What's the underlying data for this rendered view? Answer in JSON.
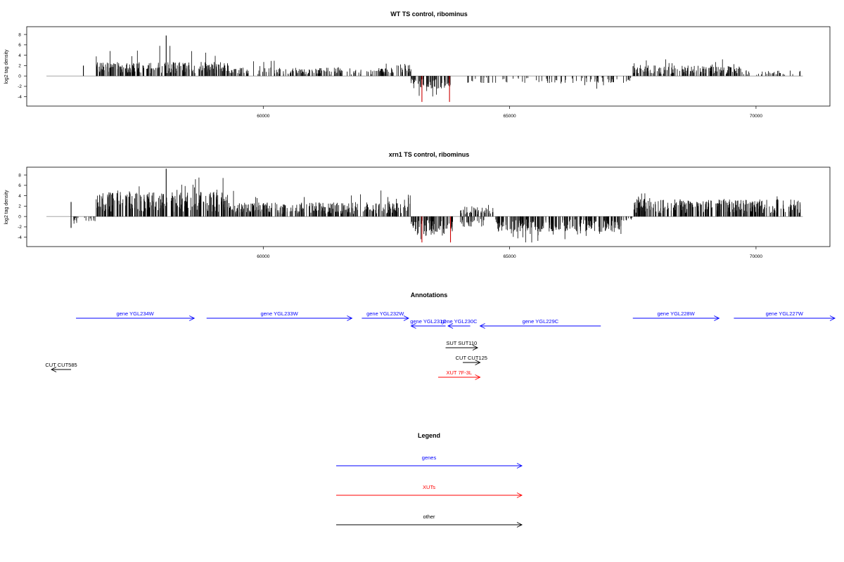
{
  "colors": {
    "gene": "#0000ff",
    "xut": "#ff0000",
    "other": "#000000",
    "bar": "#000000",
    "highlight": "#cc0000",
    "baseline": "#999999"
  },
  "chart_data": [
    {
      "type": "bar",
      "title": "WT TS control, ribominus",
      "ylabel": "log2 tag density",
      "xlim": [
        55200,
        71500
      ],
      "ylim": [
        -5.8,
        9.5
      ],
      "yticks": [
        -4,
        -2,
        0,
        2,
        4,
        6,
        8
      ],
      "xticks": [
        60000,
        65000,
        70000
      ],
      "grid": false,
      "plus_strand": [
        {
          "from": 56600,
          "to": 59300,
          "mean": 2.0,
          "max": 5.8,
          "density": 0.95
        },
        {
          "from": 59300,
          "to": 62700,
          "mean": 1.2,
          "max": 3.0,
          "density": 0.55
        },
        {
          "from": 62700,
          "to": 63000,
          "mean": 2.0,
          "max": 3.8,
          "density": 0.6
        },
        {
          "from": 67500,
          "to": 69700,
          "mean": 1.5,
          "max": 3.2,
          "density": 0.75
        },
        {
          "from": 69700,
          "to": 70900,
          "mean": 0.8,
          "max": 2.5,
          "density": 0.3
        }
      ],
      "minus_strand": [
        {
          "from": 63000,
          "to": 63800,
          "mean": -1.8,
          "min": -4.5,
          "density": 0.85
        },
        {
          "from": 64000,
          "to": 67500,
          "mean": -1.0,
          "min": -2.5,
          "density": 0.25
        }
      ],
      "peaks": [
        {
          "x": 58030,
          "y": 7.8
        },
        {
          "x": 56350,
          "y": 2.0
        },
        {
          "x": 63220,
          "y": -5.0,
          "highlight": true
        },
        {
          "x": 63780,
          "y": -5.0,
          "highlight": true
        }
      ]
    },
    {
      "type": "bar",
      "title": "xrn1 TS control, ribominus",
      "ylabel": "log2 tag density",
      "xlim": [
        55200,
        71500
      ],
      "ylim": [
        -5.8,
        9.5
      ],
      "yticks": [
        -4,
        -2,
        0,
        2,
        4,
        6,
        8
      ],
      "xticks": [
        60000,
        65000,
        70000
      ],
      "grid": false,
      "plus_strand": [
        {
          "from": 56600,
          "to": 59300,
          "mean": 3.5,
          "max": 7.5,
          "density": 1.0
        },
        {
          "from": 59300,
          "to": 62800,
          "mean": 2.0,
          "max": 5.0,
          "density": 0.9
        },
        {
          "from": 62800,
          "to": 63000,
          "mean": 2.5,
          "max": 5.0,
          "density": 0.6
        },
        {
          "from": 64000,
          "to": 64700,
          "mean": 1.5,
          "max": 3.0,
          "density": 0.6
        },
        {
          "from": 67500,
          "to": 70900,
          "mean": 2.5,
          "max": 4.5,
          "density": 0.95
        }
      ],
      "minus_strand": [
        {
          "from": 56000,
          "to": 56600,
          "mean": -0.8,
          "min": -2.0,
          "density": 0.3
        },
        {
          "from": 63000,
          "to": 63850,
          "mean": -2.8,
          "min": -5.2,
          "density": 0.95
        },
        {
          "from": 64000,
          "to": 64500,
          "mean": -1.5,
          "min": -3.0,
          "density": 0.5
        },
        {
          "from": 64700,
          "to": 67300,
          "mean": -2.2,
          "min": -5.0,
          "density": 0.95
        },
        {
          "from": 67300,
          "to": 67500,
          "mean": -0.6,
          "min": -1.2,
          "density": 0.5
        }
      ],
      "peaks": [
        {
          "x": 58030,
          "y": 9.2
        },
        {
          "x": 56100,
          "y": 2.8
        },
        {
          "x": 56100,
          "y": -2.2
        },
        {
          "x": 63220,
          "y": -5.0,
          "highlight": true
        },
        {
          "x": 63800,
          "y": -5.0,
          "highlight": true
        }
      ]
    }
  ],
  "annotations": {
    "title": "Annotations",
    "xlim": [
      55200,
      71500
    ],
    "features": [
      {
        "label": "gene YGL234W",
        "start": 56200,
        "end": 58600,
        "strand": "+",
        "kind": "gene",
        "row": 0
      },
      {
        "label": "gene YGL233W",
        "start": 58850,
        "end": 61800,
        "strand": "+",
        "kind": "gene",
        "row": 0
      },
      {
        "label": "gene YGL232W",
        "start": 62000,
        "end": 62950,
        "strand": "+",
        "kind": "gene",
        "row": 0
      },
      {
        "label": "gene YGL231C",
        "start": 63000,
        "end": 63700,
        "strand": "-",
        "kind": "gene",
        "row": 1
      },
      {
        "label": "gene YGL230C",
        "start": 63750,
        "end": 64200,
        "strand": "-",
        "kind": "gene",
        "row": 1
      },
      {
        "label": "gene YGL229C",
        "start": 64400,
        "end": 66850,
        "strand": "-",
        "kind": "gene",
        "row": 1
      },
      {
        "label": "gene YGL228W",
        "start": 67500,
        "end": 69250,
        "strand": "+",
        "kind": "gene",
        "row": 0
      },
      {
        "label": "gene YGL227W",
        "start": 69550,
        "end": 71600,
        "strand": "+",
        "kind": "gene",
        "row": 0
      },
      {
        "label": "SUT SUT110",
        "start": 63700,
        "end": 64350,
        "strand": "+",
        "kind": "other",
        "row": 3
      },
      {
        "label": "CUT CUT125",
        "start": 64050,
        "end": 64400,
        "strand": "+",
        "kind": "other",
        "row": 4
      },
      {
        "label": "CUT CUT585",
        "start": 55700,
        "end": 56100,
        "strand": "-",
        "kind": "other",
        "row": 5
      },
      {
        "label": "XUT 7F-3L",
        "start": 63550,
        "end": 64400,
        "strand": "+",
        "kind": "xut",
        "row": 6
      }
    ]
  },
  "legend": {
    "title": "Legend",
    "items": [
      {
        "label": "genes",
        "kind": "gene"
      },
      {
        "label": "XUTs",
        "kind": "xut"
      },
      {
        "label": "other",
        "kind": "other"
      }
    ]
  }
}
